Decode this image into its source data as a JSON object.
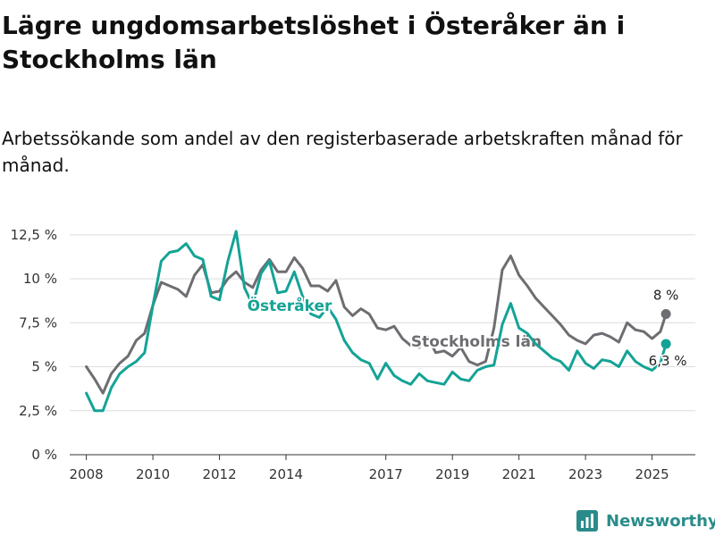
{
  "title": "Lägre ungdomsarbetslöshet i Österåker än i Stockholms län",
  "subtitle": "Arbetssökande som andel av den registerbaserade arbetskraften månad för månad.",
  "brand": {
    "name": "Newsworthy",
    "icon": "bar-chart-logo-icon"
  },
  "chart_data": {
    "type": "line",
    "ylim": [
      0,
      13
    ],
    "y_ticks": [
      0,
      2.5,
      5,
      7.5,
      10,
      12.5
    ],
    "y_tick_labels": [
      "0 %",
      "2,5 %",
      "5 %",
      "7,5 %",
      "10 %",
      "12,5 %"
    ],
    "x_tick_years": [
      2008,
      2010,
      2012,
      2014,
      2017,
      2019,
      2021,
      2023,
      2025
    ],
    "x_tick_labels": [
      "2008",
      "2010",
      "2012",
      "2014",
      "2017",
      "2019",
      "2021",
      "2023",
      "2025"
    ],
    "xlabel": "",
    "ylabel": "",
    "grid": true,
    "colors": {
      "osteraker": "#14a396",
      "stockholm": "#6d6d72",
      "grid": "#dcdcdc",
      "axis": "#333333"
    },
    "series": [
      {
        "name": "Stockholms län",
        "key": "stockholm",
        "label": "Stockholms län",
        "end_label": "8 %",
        "points": [
          [
            "2008-01",
            5.0
          ],
          [
            "2008-04",
            4.3
          ],
          [
            "2008-07",
            3.5
          ],
          [
            "2008-10",
            4.6
          ],
          [
            "2009-01",
            5.2
          ],
          [
            "2009-04",
            5.6
          ],
          [
            "2009-07",
            6.5
          ],
          [
            "2009-10",
            6.9
          ],
          [
            "2010-01",
            8.5
          ],
          [
            "2010-04",
            9.8
          ],
          [
            "2010-07",
            9.6
          ],
          [
            "2010-10",
            9.4
          ],
          [
            "2011-01",
            9.0
          ],
          [
            "2011-04",
            10.2
          ],
          [
            "2011-07",
            10.8
          ],
          [
            "2011-10",
            9.2
          ],
          [
            "2012-01",
            9.3
          ],
          [
            "2012-04",
            10.0
          ],
          [
            "2012-07",
            10.4
          ],
          [
            "2012-10",
            9.8
          ],
          [
            "2013-01",
            9.5
          ],
          [
            "2013-04",
            10.5
          ],
          [
            "2013-07",
            11.1
          ],
          [
            "2013-10",
            10.4
          ],
          [
            "2014-01",
            10.4
          ],
          [
            "2014-04",
            11.2
          ],
          [
            "2014-07",
            10.6
          ],
          [
            "2014-10",
            9.6
          ],
          [
            "2015-01",
            9.6
          ],
          [
            "2015-04",
            9.3
          ],
          [
            "2015-07",
            9.9
          ],
          [
            "2015-10",
            8.4
          ],
          [
            "2016-01",
            7.9
          ],
          [
            "2016-04",
            8.3
          ],
          [
            "2016-07",
            8.0
          ],
          [
            "2016-10",
            7.2
          ],
          [
            "2017-01",
            7.1
          ],
          [
            "2017-04",
            7.3
          ],
          [
            "2017-07",
            6.6
          ],
          [
            "2017-10",
            6.2
          ],
          [
            "2018-01",
            6.1
          ],
          [
            "2018-04",
            6.7
          ],
          [
            "2018-07",
            5.8
          ],
          [
            "2018-10",
            5.9
          ],
          [
            "2019-01",
            5.6
          ],
          [
            "2019-04",
            6.1
          ],
          [
            "2019-07",
            5.3
          ],
          [
            "2019-10",
            5.1
          ],
          [
            "2020-01",
            5.3
          ],
          [
            "2020-04",
            7.2
          ],
          [
            "2020-07",
            10.5
          ],
          [
            "2020-10",
            11.3
          ],
          [
            "2021-01",
            10.2
          ],
          [
            "2021-04",
            9.6
          ],
          [
            "2021-07",
            8.9
          ],
          [
            "2021-10",
            8.4
          ],
          [
            "2022-01",
            7.9
          ],
          [
            "2022-04",
            7.4
          ],
          [
            "2022-07",
            6.8
          ],
          [
            "2022-10",
            6.5
          ],
          [
            "2023-01",
            6.3
          ],
          [
            "2023-04",
            6.8
          ],
          [
            "2023-07",
            6.9
          ],
          [
            "2023-10",
            6.7
          ],
          [
            "2024-01",
            6.4
          ],
          [
            "2024-04",
            7.5
          ],
          [
            "2024-07",
            7.1
          ],
          [
            "2024-10",
            7.0
          ],
          [
            "2025-01",
            6.6
          ],
          [
            "2025-04",
            7.0
          ],
          [
            "2025-06",
            8.0
          ]
        ]
      },
      {
        "name": "Österåker",
        "key": "osteraker",
        "label": "Österåker",
        "end_label": "6,3 %",
        "points": [
          [
            "2008-01",
            3.5
          ],
          [
            "2008-04",
            2.5
          ],
          [
            "2008-07",
            2.5
          ],
          [
            "2008-10",
            3.8
          ],
          [
            "2009-01",
            4.6
          ],
          [
            "2009-04",
            5.0
          ],
          [
            "2009-07",
            5.3
          ],
          [
            "2009-10",
            5.8
          ],
          [
            "2010-01",
            8.5
          ],
          [
            "2010-04",
            11.0
          ],
          [
            "2010-07",
            11.5
          ],
          [
            "2010-10",
            11.6
          ],
          [
            "2011-01",
            12.0
          ],
          [
            "2011-04",
            11.3
          ],
          [
            "2011-07",
            11.1
          ],
          [
            "2011-10",
            9.0
          ],
          [
            "2012-01",
            8.8
          ],
          [
            "2012-04",
            11.0
          ],
          [
            "2012-07",
            12.7
          ],
          [
            "2012-10",
            9.5
          ],
          [
            "2013-01",
            8.5
          ],
          [
            "2013-04",
            10.3
          ],
          [
            "2013-07",
            11.0
          ],
          [
            "2013-10",
            9.2
          ],
          [
            "2014-01",
            9.3
          ],
          [
            "2014-04",
            10.4
          ],
          [
            "2014-07",
            9.0
          ],
          [
            "2014-10",
            8.0
          ],
          [
            "2015-01",
            7.8
          ],
          [
            "2015-04",
            8.4
          ],
          [
            "2015-07",
            7.7
          ],
          [
            "2015-10",
            6.5
          ],
          [
            "2016-01",
            5.8
          ],
          [
            "2016-04",
            5.4
          ],
          [
            "2016-07",
            5.2
          ],
          [
            "2016-10",
            4.3
          ],
          [
            "2017-01",
            5.2
          ],
          [
            "2017-04",
            4.5
          ],
          [
            "2017-07",
            4.2
          ],
          [
            "2017-10",
            4.0
          ],
          [
            "2018-01",
            4.6
          ],
          [
            "2018-04",
            4.2
          ],
          [
            "2018-07",
            4.1
          ],
          [
            "2018-10",
            4.0
          ],
          [
            "2019-01",
            4.7
          ],
          [
            "2019-04",
            4.3
          ],
          [
            "2019-07",
            4.2
          ],
          [
            "2019-10",
            4.8
          ],
          [
            "2020-01",
            5.0
          ],
          [
            "2020-04",
            5.1
          ],
          [
            "2020-07",
            7.4
          ],
          [
            "2020-10",
            8.6
          ],
          [
            "2021-01",
            7.2
          ],
          [
            "2021-04",
            6.9
          ],
          [
            "2021-07",
            6.3
          ],
          [
            "2021-10",
            5.9
          ],
          [
            "2022-01",
            5.5
          ],
          [
            "2022-04",
            5.3
          ],
          [
            "2022-07",
            4.8
          ],
          [
            "2022-10",
            5.9
          ],
          [
            "2023-01",
            5.2
          ],
          [
            "2023-04",
            4.9
          ],
          [
            "2023-07",
            5.4
          ],
          [
            "2023-10",
            5.3
          ],
          [
            "2024-01",
            5.0
          ],
          [
            "2024-04",
            5.9
          ],
          [
            "2024-07",
            5.3
          ],
          [
            "2024-10",
            5.0
          ],
          [
            "2025-01",
            4.8
          ],
          [
            "2025-04",
            5.2
          ],
          [
            "2025-06",
            6.3
          ]
        ]
      }
    ]
  }
}
